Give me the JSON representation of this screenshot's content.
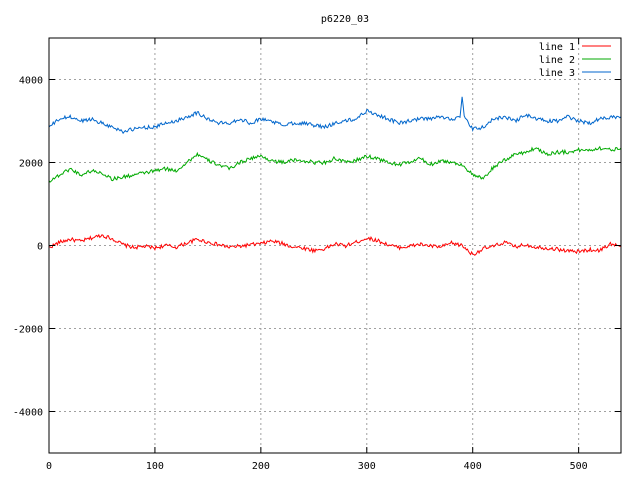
{
  "chart_data": {
    "type": "line",
    "title": "p6220_03",
    "xlabel": "",
    "ylabel": "",
    "xlim": [
      0,
      540
    ],
    "ylim": [
      -5000,
      5000
    ],
    "x_ticks": [
      0,
      100,
      200,
      300,
      400,
      500
    ],
    "y_ticks": [
      -4000,
      -2000,
      0,
      2000,
      4000
    ],
    "grid": true,
    "legend_position": "top-right",
    "series": [
      {
        "name": "line 1",
        "color": "#ff0000",
        "x": [
          0,
          10,
          20,
          30,
          40,
          50,
          60,
          70,
          80,
          90,
          100,
          110,
          120,
          130,
          140,
          150,
          160,
          170,
          180,
          190,
          200,
          210,
          220,
          230,
          240,
          250,
          260,
          270,
          280,
          290,
          300,
          310,
          320,
          330,
          340,
          350,
          360,
          370,
          380,
          390,
          400,
          410,
          420,
          430,
          440,
          450,
          460,
          470,
          480,
          490,
          500,
          510,
          520,
          530,
          540
        ],
        "y": [
          -50,
          80,
          150,
          100,
          180,
          250,
          160,
          20,
          -50,
          -20,
          -60,
          0,
          -40,
          60,
          150,
          80,
          20,
          -40,
          -20,
          20,
          40,
          110,
          50,
          -30,
          -60,
          -120,
          -80,
          40,
          -10,
          80,
          180,
          120,
          20,
          -50,
          -20,
          30,
          -10,
          -40,
          60,
          0,
          -220,
          -80,
          -20,
          80,
          -30,
          20,
          -40,
          -60,
          -90,
          -130,
          -150,
          -100,
          -120,
          40,
          -20
        ]
      },
      {
        "name": "line 2",
        "color": "#00aa00",
        "x": [
          0,
          10,
          20,
          30,
          40,
          50,
          60,
          70,
          80,
          90,
          100,
          110,
          120,
          130,
          140,
          150,
          160,
          170,
          180,
          190,
          200,
          210,
          220,
          230,
          240,
          250,
          260,
          270,
          280,
          290,
          300,
          310,
          320,
          330,
          340,
          350,
          360,
          370,
          380,
          390,
          400,
          410,
          420,
          430,
          440,
          450,
          460,
          470,
          480,
          490,
          500,
          510,
          520,
          530,
          540
        ],
        "y": [
          1550,
          1700,
          1850,
          1700,
          1800,
          1750,
          1600,
          1650,
          1700,
          1750,
          1800,
          1850,
          1800,
          2000,
          2200,
          2050,
          1950,
          1850,
          2000,
          2100,
          2150,
          2050,
          2000,
          2050,
          2050,
          2000,
          2000,
          2100,
          2000,
          2050,
          2150,
          2100,
          2000,
          1950,
          2000,
          2100,
          1950,
          2050,
          2000,
          1950,
          1700,
          1600,
          1900,
          2050,
          2200,
          2250,
          2350,
          2200,
          2250,
          2250,
          2300,
          2300,
          2350,
          2300,
          2350
        ]
      },
      {
        "name": "line 3",
        "color": "#0066cc",
        "x": [
          0,
          10,
          20,
          30,
          40,
          50,
          60,
          70,
          80,
          90,
          100,
          110,
          120,
          130,
          140,
          150,
          160,
          170,
          180,
          190,
          200,
          210,
          220,
          230,
          240,
          250,
          260,
          270,
          280,
          290,
          300,
          310,
          320,
          330,
          340,
          350,
          360,
          370,
          380,
          388,
          390,
          392,
          400,
          410,
          420,
          430,
          440,
          450,
          460,
          470,
          480,
          490,
          500,
          510,
          520,
          530,
          540
        ],
        "y": [
          2850,
          3050,
          3100,
          3000,
          3050,
          2950,
          2850,
          2750,
          2800,
          2850,
          2850,
          2950,
          3000,
          3100,
          3200,
          3050,
          2950,
          2950,
          3050,
          2950,
          3050,
          3000,
          2900,
          2950,
          2950,
          2900,
          2850,
          2950,
          3000,
          3050,
          3250,
          3150,
          3050,
          2950,
          3000,
          3050,
          3050,
          3100,
          3050,
          3100,
          3550,
          3100,
          2800,
          2850,
          3050,
          3100,
          3000,
          3150,
          3050,
          3000,
          3000,
          3100,
          3000,
          2950,
          3050,
          3100,
          3100
        ]
      }
    ]
  }
}
